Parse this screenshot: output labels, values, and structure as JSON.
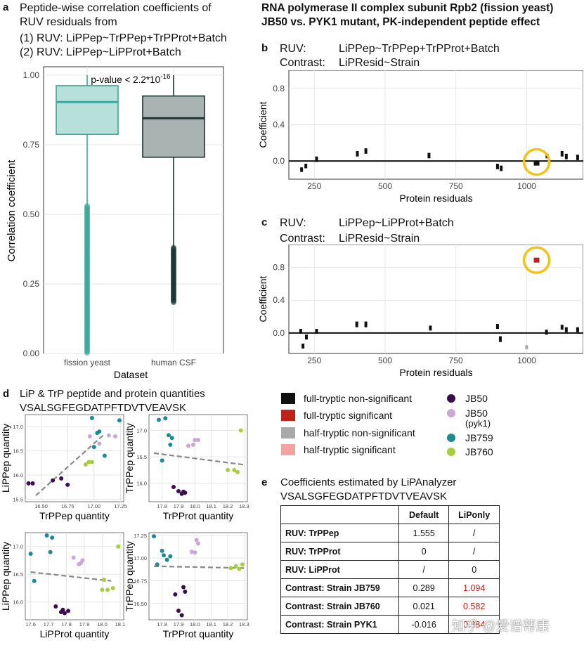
{
  "colors": {
    "teal_fill": "#b7e0da",
    "teal_line": "#3aa89a",
    "gray_fill": "#a9b4b2",
    "gray_line": "#1a3330",
    "jb50": "#3d0c4f",
    "jb50pyk1": "#c9a7d6",
    "jb759": "#1f8a94",
    "jb760": "#a8cf3b",
    "full_nonsig": "#111111",
    "full_sig": "#c0211a",
    "half_nonsig": "#a9a9a9",
    "half_sig": "#f2a3a3",
    "highlight": "#f2c318",
    "grid": "#e6e6e6"
  },
  "panel_a": {
    "letter": "a",
    "title_line1": "Peptide-wise correlation coefficients of",
    "title_line2": "RUV residuals from",
    "title_line3": "(1) RUV:  LiPPep~TrPPep+TrPProt+Batch",
    "title_line4": "(2) RUV:  LiPPep~LiPProt+Batch",
    "pvalue": "p-value < 2.2*10",
    "pvalue_exp": "-16",
    "chart_data": {
      "type": "boxplot",
      "ylabel": "Correlation coefficient",
      "xlabel": "Dataset",
      "ylim": [
        0,
        1.03
      ],
      "yticks": [
        "0.00",
        "0.25",
        "0.50",
        "0.75",
        "1.00"
      ],
      "categories": [
        "fission yeast",
        "human CSF"
      ],
      "boxes": [
        {
          "name": "fission yeast",
          "q1": 0.787,
          "median": 0.903,
          "q3": 0.962,
          "lower": 0.53,
          "upper": 1.0
        },
        {
          "name": "human CSF",
          "q1": 0.705,
          "median": 0.845,
          "q3": 0.925,
          "lower": 0.38,
          "upper": 1.0
        }
      ]
    }
  },
  "header_right": {
    "line1": "RNA polymerase II complex subunit Rpb2 (fission yeast)",
    "line2": "JB50 vs. PYK1 mutant, PK-independent peptide effect"
  },
  "panel_b": {
    "letter": "b",
    "ruv_label": "RUV:",
    "ruv_value": "LiPPep~TrPPep+TrPProt+Batch",
    "contrast_label": "Contrast:",
    "contrast_value": "LiPResid~Strain",
    "chart_data": {
      "type": "segment",
      "xlabel": "Protein residuals",
      "ylabel": "Coefficient",
      "xlim": [
        160,
        1200
      ],
      "ylim": [
        -0.2,
        1.0
      ],
      "xticks": [
        "250",
        "500",
        "750",
        "1000"
      ],
      "yticks": [
        "0.0",
        "0.4",
        "0.8"
      ],
      "marks": [
        {
          "x": 205,
          "y1": -0.07,
          "y2": -0.12,
          "cls": "full_nonsig"
        },
        {
          "x": 220,
          "y1": -0.03,
          "y2": -0.08,
          "cls": "full_nonsig"
        },
        {
          "x": 258,
          "y1": 0.05,
          "y2": -0.01,
          "cls": "full_nonsig"
        },
        {
          "x": 402,
          "y1": 0.11,
          "y2": 0.05,
          "cls": "full_nonsig"
        },
        {
          "x": 432,
          "y1": 0.14,
          "y2": 0.08,
          "cls": "full_nonsig"
        },
        {
          "x": 655,
          "y1": 0.09,
          "y2": 0.03,
          "cls": "full_nonsig"
        },
        {
          "x": 897,
          "y1": -0.03,
          "y2": -0.09,
          "cls": "full_nonsig"
        },
        {
          "x": 910,
          "y1": -0.05,
          "y2": -0.11,
          "cls": "full_nonsig"
        },
        {
          "x": 1035,
          "y1": 0.0,
          "y2": -0.05,
          "cls": "full_nonsig",
          "wide": true
        },
        {
          "x": 1072,
          "y1": 0.08,
          "y2": 0.03,
          "cls": "full_nonsig"
        },
        {
          "x": 1125,
          "y1": 0.11,
          "y2": 0.05,
          "cls": "full_nonsig"
        },
        {
          "x": 1140,
          "y1": 0.08,
          "y2": 0.02,
          "cls": "full_nonsig"
        },
        {
          "x": 1180,
          "y1": 0.07,
          "y2": 0.01,
          "cls": "full_nonsig"
        }
      ],
      "highlight_x": 1035,
      "highlight_y": -0.01
    }
  },
  "panel_c": {
    "letter": "c",
    "ruv_label": "RUV:",
    "ruv_value": "LiPPep~LiPProt+Batch",
    "contrast_label": "Contrast:",
    "contrast_value": "LiPResid~Strain",
    "chart_data": {
      "type": "segment",
      "xlabel": "Protein residuals",
      "ylabel": "Coefficient",
      "xlim": [
        160,
        1200
      ],
      "ylim": [
        -0.25,
        1.08
      ],
      "xticks": [
        "250",
        "500",
        "750",
        "1000"
      ],
      "yticks": [
        "0.0",
        "0.4",
        "0.8"
      ],
      "marks": [
        {
          "x": 202,
          "y1": 0.05,
          "y2": 0.0,
          "cls": "full_nonsig"
        },
        {
          "x": 210,
          "y1": -0.13,
          "y2": -0.19,
          "cls": "full_nonsig"
        },
        {
          "x": 222,
          "y1": -0.02,
          "y2": -0.08,
          "cls": "full_nonsig"
        },
        {
          "x": 258,
          "y1": 0.05,
          "y2": -0.01,
          "cls": "full_nonsig"
        },
        {
          "x": 400,
          "y1": 0.14,
          "y2": 0.07,
          "cls": "full_nonsig"
        },
        {
          "x": 432,
          "y1": 0.14,
          "y2": 0.07,
          "cls": "full_nonsig"
        },
        {
          "x": 660,
          "y1": 0.09,
          "y2": 0.03,
          "cls": "full_nonsig"
        },
        {
          "x": 897,
          "y1": 0.11,
          "y2": 0.05,
          "cls": "full_nonsig"
        },
        {
          "x": 907,
          "y1": -0.04,
          "y2": -0.11,
          "cls": "full_nonsig"
        },
        {
          "x": 1000,
          "y1": -0.15,
          "y2": -0.2,
          "cls": "half_nonsig"
        },
        {
          "x": 1035,
          "y1": 0.92,
          "y2": 0.86,
          "cls": "full_sig",
          "wide": true
        },
        {
          "x": 1070,
          "y1": 0.04,
          "y2": -0.02,
          "cls": "full_nonsig"
        },
        {
          "x": 1125,
          "y1": 0.1,
          "y2": 0.04,
          "cls": "full_nonsig"
        },
        {
          "x": 1140,
          "y1": 0.07,
          "y2": 0.01,
          "cls": "full_nonsig"
        },
        {
          "x": 1180,
          "y1": 0.07,
          "y2": 0.01,
          "cls": "full_nonsig"
        }
      ],
      "highlight_x": 1035,
      "highlight_y": 0.89
    }
  },
  "legend": {
    "items": [
      {
        "label": "full-tryptic non-significant",
        "key": "full_nonsig"
      },
      {
        "label": "full-tryptic significant",
        "key": "full_sig"
      },
      {
        "label": "half-tryptic non-significant",
        "key": "half_nonsig"
      },
      {
        "label": "half-tryptic significant",
        "key": "half_sig"
      }
    ],
    "strains": [
      {
        "label": "JB50",
        "key": "jb50"
      },
      {
        "label": "JB50",
        "sub": "(pyk1)",
        "key": "jb50pyk1"
      },
      {
        "label": "JB759",
        "key": "jb759"
      },
      {
        "label": "JB760",
        "key": "jb760"
      }
    ]
  },
  "panel_d": {
    "letter": "d",
    "title": "LiP & TrP peptide and protein quantities",
    "peptide": "VSALSGFEGDATPFTDVTVEAVSK",
    "chart_data": [
      {
        "type": "scatter",
        "xlabel": "TrPPep quantity",
        "ylabel": "LiPPep quantity",
        "xlim": [
          16.35,
          17.28
        ],
        "ylim": [
          15.45,
          17.25
        ],
        "xticks": [
          "16.50",
          "16.75",
          "17.00",
          "17.25"
        ],
        "yticks": [
          "15.5",
          "16.0",
          "16.5",
          "17.0"
        ],
        "fit": {
          "x": [
            16.45,
            17.1
          ],
          "y": [
            15.58,
            16.85
          ]
        },
        "points": [
          {
            "x": 16.38,
            "y": 15.83,
            "s": "jb50"
          },
          {
            "x": 16.42,
            "y": 15.83,
            "s": "jb50"
          },
          {
            "x": 16.61,
            "y": 15.89,
            "s": "jb50"
          },
          {
            "x": 16.69,
            "y": 15.93,
            "s": "jb50"
          },
          {
            "x": 16.75,
            "y": 15.8,
            "s": "jb50"
          },
          {
            "x": 16.96,
            "y": 16.8,
            "s": "jb50pyk1"
          },
          {
            "x": 17.14,
            "y": 16.82,
            "s": "jb50pyk1"
          },
          {
            "x": 17.2,
            "y": 16.8,
            "s": "jb50pyk1"
          },
          {
            "x": 17.05,
            "y": 16.65,
            "s": "jb50pyk1"
          },
          {
            "x": 16.98,
            "y": 17.18,
            "s": "jb759"
          },
          {
            "x": 17.03,
            "y": 16.87,
            "s": "jb759"
          },
          {
            "x": 17.05,
            "y": 16.9,
            "s": "jb759"
          },
          {
            "x": 17.1,
            "y": 16.4,
            "s": "jb759"
          },
          {
            "x": 17.24,
            "y": 17.13,
            "s": "jb759"
          },
          {
            "x": 17.0,
            "y": 16.58,
            "s": "jb759"
          },
          {
            "x": 16.92,
            "y": 16.22,
            "s": "jb760"
          },
          {
            "x": 16.95,
            "y": 16.27,
            "s": "jb760"
          },
          {
            "x": 16.98,
            "y": 16.27,
            "s": "jb760"
          }
        ]
      },
      {
        "type": "scatter",
        "xlabel": "TrPProt quantity",
        "ylabel": "TrPPep quantity",
        "xlim": [
          17.72,
          18.32
        ],
        "ylim": [
          15.65,
          17.3
        ],
        "xticks": [
          "17.8",
          "17.9",
          "18.0",
          "18.1",
          "18.2",
          "18.3"
        ],
        "yticks": [
          "16.0",
          "16.5",
          "17.0"
        ],
        "fit": {
          "x": [
            17.75,
            18.3
          ],
          "y": [
            16.57,
            16.35
          ]
        },
        "points": [
          {
            "x": 17.78,
            "y": 17.2,
            "s": "jb759"
          },
          {
            "x": 17.82,
            "y": 17.23,
            "s": "jb759"
          },
          {
            "x": 17.84,
            "y": 16.91,
            "s": "jb759"
          },
          {
            "x": 17.86,
            "y": 16.86,
            "s": "jb759"
          },
          {
            "x": 17.8,
            "y": 16.43,
            "s": "jb759"
          },
          {
            "x": 17.85,
            "y": 16.73,
            "s": "jb759"
          },
          {
            "x": 17.87,
            "y": 15.93,
            "s": "jb50"
          },
          {
            "x": 17.9,
            "y": 15.85,
            "s": "jb50"
          },
          {
            "x": 17.92,
            "y": 15.8,
            "s": "jb50"
          },
          {
            "x": 17.94,
            "y": 15.82,
            "s": "jb50"
          },
          {
            "x": 17.93,
            "y": 15.84,
            "s": "jb50"
          },
          {
            "x": 17.96,
            "y": 16.71,
            "s": "jb50pyk1"
          },
          {
            "x": 17.99,
            "y": 16.73,
            "s": "jb50pyk1"
          },
          {
            "x": 18.0,
            "y": 16.82,
            "s": "jb50pyk1"
          },
          {
            "x": 18.02,
            "y": 16.82,
            "s": "jb50pyk1"
          },
          {
            "x": 18.2,
            "y": 16.25,
            "s": "jb760"
          },
          {
            "x": 18.24,
            "y": 16.25,
            "s": "jb760"
          },
          {
            "x": 18.26,
            "y": 16.21,
            "s": "jb760"
          },
          {
            "x": 18.28,
            "y": 17.0,
            "s": "jb760"
          }
        ]
      },
      {
        "type": "scatter",
        "xlabel": "LiPProt quantity",
        "ylabel": "LiPPep quantity",
        "xlim": [
          17.57,
          18.12
        ],
        "ylim": [
          15.68,
          17.25
        ],
        "xticks": [
          "17.6",
          "17.7",
          "17.8",
          "17.9",
          "18.0",
          "18.1"
        ],
        "yticks": [
          "16.0",
          "16.5",
          "17.0"
        ],
        "fit": {
          "x": [
            17.6,
            18.05
          ],
          "y": [
            16.54,
            16.38
          ]
        },
        "points": [
          {
            "x": 17.69,
            "y": 17.2,
            "s": "jb759"
          },
          {
            "x": 17.72,
            "y": 17.16,
            "s": "jb759"
          },
          {
            "x": 17.6,
            "y": 16.87,
            "s": "jb759"
          },
          {
            "x": 17.71,
            "y": 16.9,
            "s": "jb759"
          },
          {
            "x": 17.62,
            "y": 16.38,
            "s": "jb759"
          },
          {
            "x": 17.74,
            "y": 15.92,
            "s": "jb50"
          },
          {
            "x": 17.77,
            "y": 15.82,
            "s": "jb50"
          },
          {
            "x": 17.79,
            "y": 15.8,
            "s": "jb50"
          },
          {
            "x": 17.81,
            "y": 15.84,
            "s": "jb50"
          },
          {
            "x": 17.78,
            "y": 15.86,
            "s": "jb50"
          },
          {
            "x": 17.84,
            "y": 16.8,
            "s": "jb50pyk1"
          },
          {
            "x": 17.87,
            "y": 16.68,
            "s": "jb50pyk1"
          },
          {
            "x": 17.88,
            "y": 16.7,
            "s": "jb50pyk1"
          },
          {
            "x": 17.89,
            "y": 16.75,
            "s": "jb50pyk1"
          },
          {
            "x": 18.0,
            "y": 16.22,
            "s": "jb760"
          },
          {
            "x": 18.03,
            "y": 16.22,
            "s": "jb760"
          },
          {
            "x": 18.06,
            "y": 16.25,
            "s": "jb760"
          },
          {
            "x": 18.09,
            "y": 17.0,
            "s": "jb760"
          },
          {
            "x": 18.01,
            "y": 16.4,
            "s": "jb760"
          }
        ]
      },
      {
        "type": "scatter",
        "xlabel": "TrPProt quantity",
        "ylabel": "TrPPep quantity",
        "xlim": [
          17.72,
          18.32
        ],
        "ylim": [
          16.32,
          17.28
        ],
        "xticks": [
          "17.8",
          "17.9",
          "18.0",
          "18.1",
          "18.2",
          "18.3"
        ],
        "yticks": [
          "16.50",
          "16.75",
          "17.00",
          "17.25"
        ],
        "fit": {
          "x": [
            17.75,
            18.3
          ],
          "y": [
            16.91,
            16.89
          ]
        },
        "points": [
          {
            "x": 17.75,
            "y": 17.24,
            "s": "jb759"
          },
          {
            "x": 17.8,
            "y": 17.08,
            "s": "jb759"
          },
          {
            "x": 17.81,
            "y": 17.03,
            "s": "jb759"
          },
          {
            "x": 17.83,
            "y": 16.98,
            "s": "jb759"
          },
          {
            "x": 17.85,
            "y": 17.02,
            "s": "jb759"
          },
          {
            "x": 17.77,
            "y": 16.93,
            "s": "jb759"
          },
          {
            "x": 17.88,
            "y": 16.6,
            "s": "jb50"
          },
          {
            "x": 17.9,
            "y": 16.42,
            "s": "jb50"
          },
          {
            "x": 17.92,
            "y": 16.37,
            "s": "jb50"
          },
          {
            "x": 17.94,
            "y": 16.63,
            "s": "jb50"
          },
          {
            "x": 17.93,
            "y": 16.68,
            "s": "jb50"
          },
          {
            "x": 17.98,
            "y": 17.07,
            "s": "jb50pyk1"
          },
          {
            "x": 18.0,
            "y": 17.06,
            "s": "jb50pyk1"
          },
          {
            "x": 18.01,
            "y": 17.2,
            "s": "jb50pyk1"
          },
          {
            "x": 18.02,
            "y": 17.16,
            "s": "jb50pyk1"
          },
          {
            "x": 18.22,
            "y": 16.89,
            "s": "jb760"
          },
          {
            "x": 18.25,
            "y": 16.91,
            "s": "jb760"
          },
          {
            "x": 18.27,
            "y": 16.88,
            "s": "jb760"
          },
          {
            "x": 18.29,
            "y": 16.93,
            "s": "jb760"
          }
        ]
      }
    ]
  },
  "panel_e": {
    "letter": "e",
    "title": "Coefficients estimated by LiPAnalyzer",
    "peptide": "VSALSGFEGDATPFTDVTVEAVSK",
    "headers": [
      "",
      "Default",
      "LiPonly"
    ],
    "rows": [
      {
        "label": "RUV: TrPPep",
        "default": "1.555",
        "liponly": "/",
        "red": false
      },
      {
        "label": "RUV: TrPProt",
        "default": "0",
        "liponly": "/",
        "red": false
      },
      {
        "label": "RUV: LiPProt",
        "default": "/",
        "liponly": "0",
        "red": false
      },
      {
        "label": "Contrast: Strain JB759",
        "default": "0.289",
        "liponly": "1.094",
        "red": true
      },
      {
        "label": "Contrast: Strain JB760",
        "default": "0.021",
        "liponly": "0.582",
        "red": true
      },
      {
        "label": "Contrast: Strain PYK1",
        "default": "-0.016",
        "liponly": "0.884",
        "red": true
      }
    ]
  },
  "watermark": "知乎 @爱谱蒂康"
}
